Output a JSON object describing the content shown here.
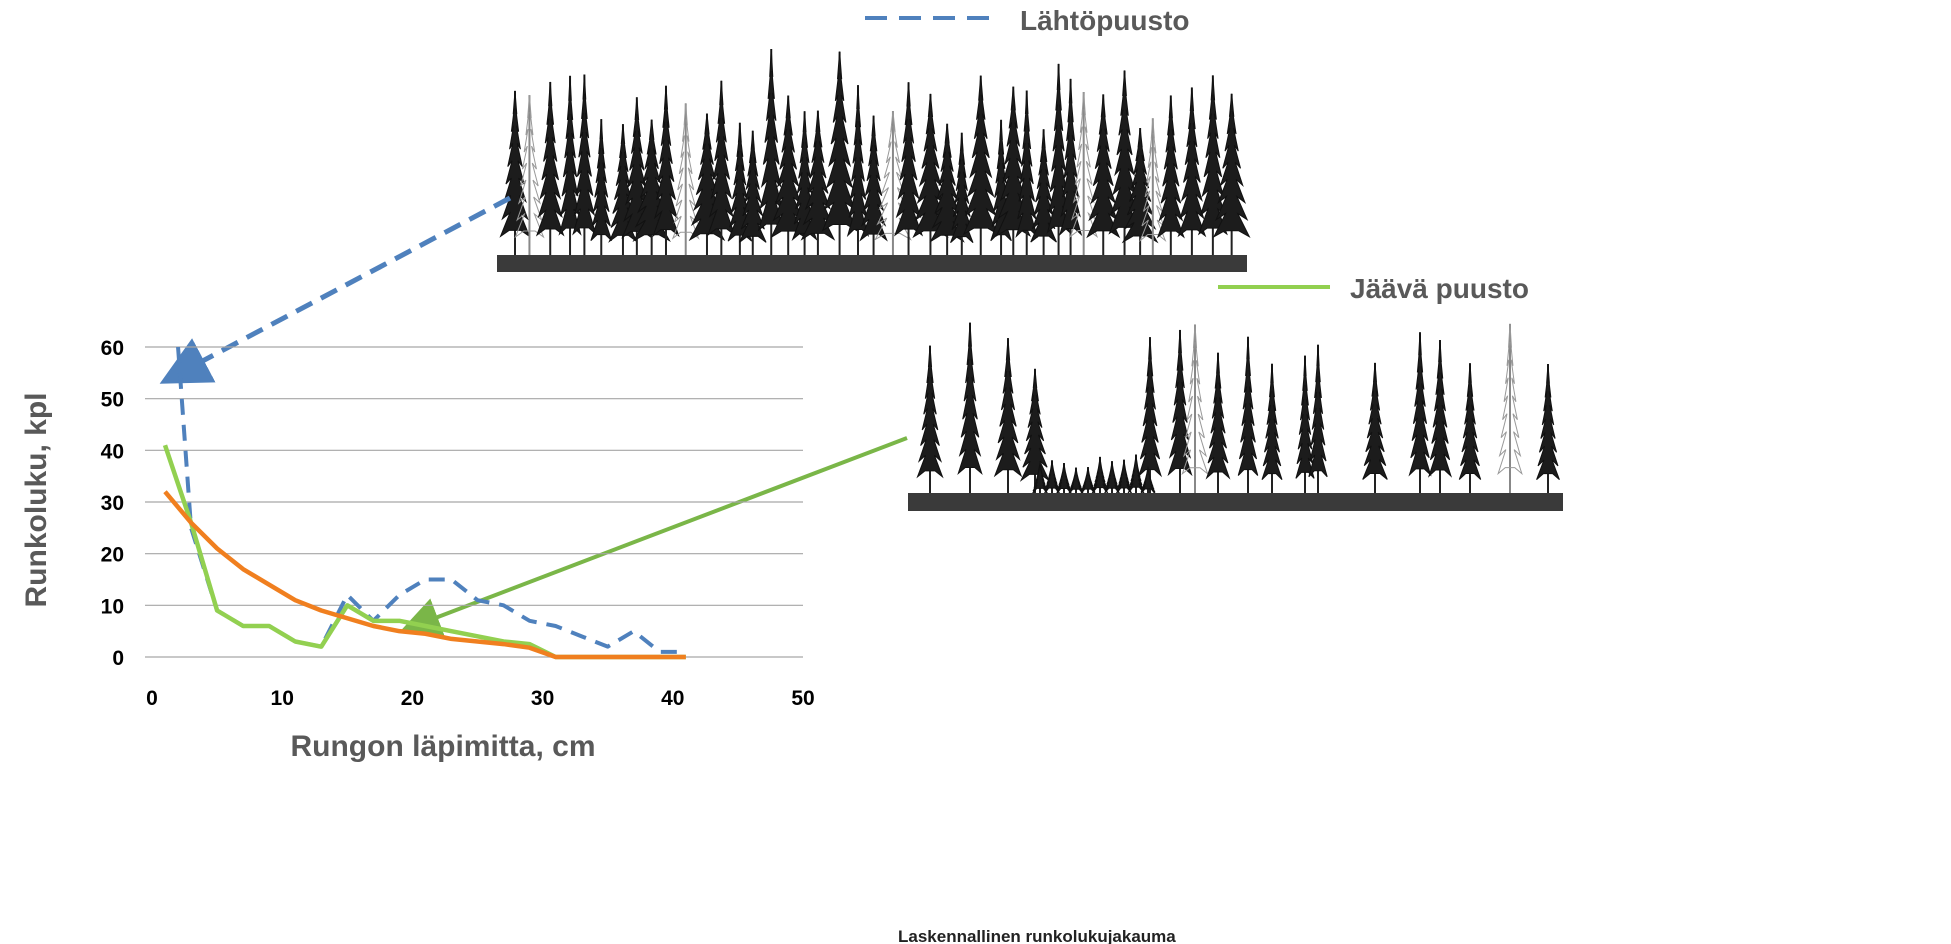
{
  "chart_data": {
    "type": "line",
    "x_label": "Rungon läpimitta, cm",
    "y_label": "Runkoluku, kpl",
    "xlim": [
      0,
      50
    ],
    "xticks": [
      0,
      10,
      20,
      30,
      40,
      50
    ],
    "ylim": [
      0,
      60
    ],
    "yticks": [
      0,
      10,
      20,
      30,
      40,
      50,
      60
    ],
    "grid": true,
    "series": [
      {
        "name": "Lähtöpuusto",
        "color": "#4f81bd",
        "dash": true,
        "x": [
          2,
          3,
          5,
          7,
          9,
          11,
          13,
          15,
          17,
          19,
          21,
          23,
          25,
          27,
          29,
          31,
          33,
          35,
          37,
          39,
          41
        ],
        "values": [
          60,
          25,
          9,
          6,
          6,
          3,
          2,
          12,
          7,
          12,
          15,
          15,
          11,
          10,
          7,
          6,
          4,
          2,
          5,
          1,
          1
        ]
      },
      {
        "name": "Jäävä puusto",
        "color": "#92d050",
        "x": [
          1,
          3,
          5,
          7,
          9,
          11,
          13,
          15,
          17,
          19,
          21,
          23,
          25,
          27,
          29,
          31,
          33,
          35,
          37,
          39,
          41
        ],
        "values": [
          41,
          26,
          9,
          6,
          6,
          3,
          2,
          10,
          7,
          7,
          6,
          5,
          4,
          3,
          2.5,
          0,
          0,
          0,
          0,
          0,
          0
        ]
      },
      {
        "name": "Laskennallinen runkolukujakauma",
        "color": "#f07f1f",
        "x": [
          1,
          3,
          5,
          7,
          9,
          11,
          13,
          15,
          17,
          19,
          21,
          23,
          25,
          27,
          29,
          31,
          33,
          35,
          37,
          39,
          41
        ],
        "values": [
          32,
          26,
          21,
          17,
          14,
          11,
          9,
          7.5,
          6,
          5,
          4.5,
          3.5,
          3,
          2.5,
          1.8,
          0,
          0,
          0,
          0,
          0,
          0
        ]
      }
    ]
  }
}
